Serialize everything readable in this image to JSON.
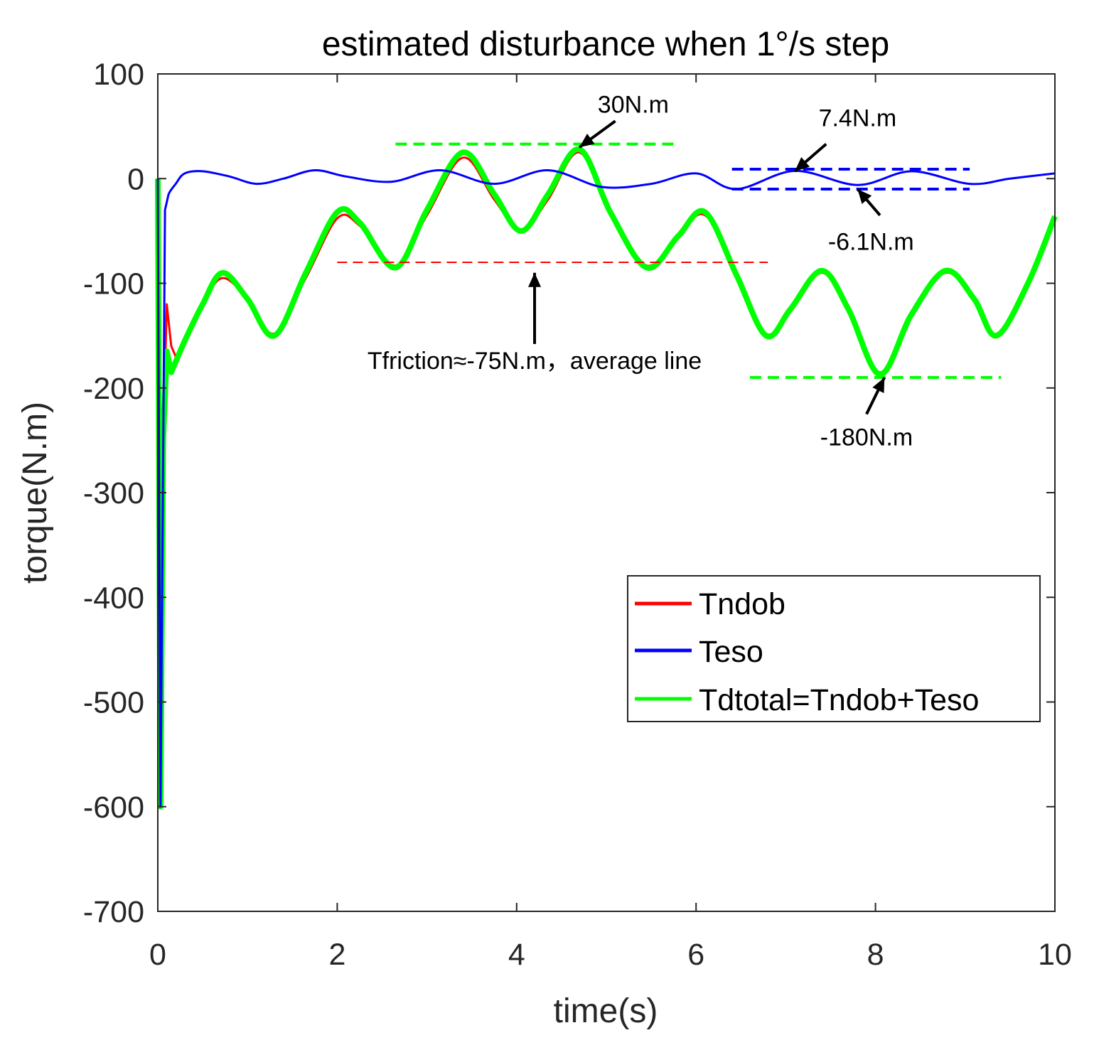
{
  "chart_data": {
    "type": "line",
    "title": "estimated disturbance when 1°/s step",
    "xlabel": "time(s)",
    "ylabel": "torque(N.m)",
    "xlim": [
      0,
      10
    ],
    "ylim": [
      -700,
      100
    ],
    "xticks": [
      0,
      2,
      4,
      6,
      8,
      10
    ],
    "yticks": [
      100,
      0,
      -100,
      -200,
      -300,
      -400,
      -500,
      -600,
      -700
    ],
    "grid": false,
    "legend_position": "lower-right",
    "series": [
      {
        "name": "Tndob",
        "color": "#ff0000",
        "x": [
          0,
          0.03,
          0.06,
          0.1,
          0.15,
          0.2,
          0.3,
          0.5,
          0.72,
          1.0,
          1.3,
          1.65,
          2.0,
          2.25,
          2.65,
          3.0,
          3.4,
          3.75,
          4.05,
          4.35,
          4.7,
          5.05,
          5.45,
          5.8,
          6.1,
          6.45,
          6.78,
          7.05,
          7.4,
          7.7,
          8.05,
          8.4,
          8.78,
          9.1,
          9.35,
          9.7,
          10.0
        ],
        "y": [
          0,
          -600,
          -250,
          -120,
          -160,
          -170,
          -155,
          -120,
          -95,
          -115,
          -148,
          -95,
          -38,
          -45,
          -83,
          -35,
          20,
          -20,
          -50,
          -20,
          25,
          -35,
          -83,
          -55,
          -35,
          -90,
          -148,
          -125,
          -90,
          -125,
          -185,
          -130,
          -90,
          -115,
          -150,
          -100,
          -40
        ]
      },
      {
        "name": "Teso",
        "color": "#0000ff",
        "x": [
          0,
          0.03,
          0.08,
          0.12,
          0.2,
          0.3,
          0.5,
          0.8,
          1.1,
          1.4,
          1.75,
          2.1,
          2.6,
          3.15,
          3.75,
          4.35,
          4.95,
          5.5,
          6.0,
          6.45,
          7.1,
          7.8,
          8.4,
          9.05,
          9.5,
          10.0
        ],
        "y": [
          0,
          -600,
          -30,
          -15,
          -5,
          5,
          7,
          2,
          -5,
          0,
          8,
          2,
          -3,
          8,
          -5,
          8,
          -8,
          -5,
          5,
          -10,
          7.4,
          -6.1,
          7,
          -5,
          0,
          5
        ]
      },
      {
        "name": "Tdtotal=Tndob+Teso",
        "color": "#00ff00",
        "x": [
          0,
          0.03,
          0.06,
          0.1,
          0.15,
          0.2,
          0.3,
          0.5,
          0.72,
          1.0,
          1.3,
          1.65,
          2.0,
          2.25,
          2.65,
          3.0,
          3.4,
          3.75,
          4.05,
          4.35,
          4.7,
          5.05,
          5.45,
          5.8,
          6.1,
          6.45,
          6.78,
          7.05,
          7.4,
          7.7,
          8.05,
          8.4,
          8.78,
          9.1,
          9.35,
          9.7,
          10.0
        ],
        "y": [
          0,
          -600,
          -250,
          -165,
          -185,
          -175,
          -155,
          -120,
          -90,
          -115,
          -150,
          -90,
          -32,
          -42,
          -85,
          -30,
          25,
          -15,
          -50,
          -15,
          28,
          -33,
          -85,
          -55,
          -32,
          -92,
          -150,
          -125,
          -88,
          -125,
          -187,
          -130,
          -88,
          -115,
          -150,
          -100,
          -36
        ]
      }
    ],
    "reference_lines": [
      {
        "name": "30N.m peak line",
        "color": "#00ff00",
        "style": "dashed",
        "x": [
          2.65,
          5.8
        ],
        "y": [
          33,
          33
        ]
      },
      {
        "name": "-180N.m valley line",
        "color": "#00ff00",
        "style": "dashed",
        "x": [
          6.6,
          9.4
        ],
        "y": [
          -190,
          -190
        ]
      },
      {
        "name": "Tfriction average line",
        "color": "#ff0000",
        "style": "dashed",
        "x": [
          2.0,
          6.8
        ],
        "y": [
          -80,
          -80
        ]
      },
      {
        "name": "7.4N.m line",
        "color": "#0000ff",
        "style": "dashed",
        "x": [
          6.4,
          9.05
        ],
        "y": [
          9,
          9
        ]
      },
      {
        "name": "-6.1N.m line",
        "color": "#0000ff",
        "style": "dashed",
        "x": [
          6.4,
          9.05
        ],
        "y": [
          -10,
          -10
        ]
      }
    ],
    "annotations": [
      {
        "text": "30N.m",
        "text_x": 5.3,
        "text_y": 63,
        "arrow_from": [
          5.1,
          55
        ],
        "arrow_to": [
          4.7,
          30
        ]
      },
      {
        "text": "7.4N.m",
        "text_x": 7.8,
        "text_y": 50,
        "arrow_from": [
          7.45,
          33
        ],
        "arrow_to": [
          7.1,
          7
        ]
      },
      {
        "text": "-6.1N.m",
        "text_x": 7.95,
        "text_y": -68,
        "arrow_from": [
          8.05,
          -35
        ],
        "arrow_to": [
          7.8,
          -10
        ]
      },
      {
        "text": "Tfriction≈-75N.m，average line",
        "text_x": 4.2,
        "text_y": -182,
        "arrow_from": [
          4.2,
          -158
        ],
        "arrow_to": [
          4.2,
          -90
        ]
      },
      {
        "text": "-180N.m",
        "text_x": 7.9,
        "text_y": -255,
        "arrow_from": [
          7.9,
          -225
        ],
        "arrow_to": [
          8.1,
          -190
        ]
      }
    ]
  }
}
